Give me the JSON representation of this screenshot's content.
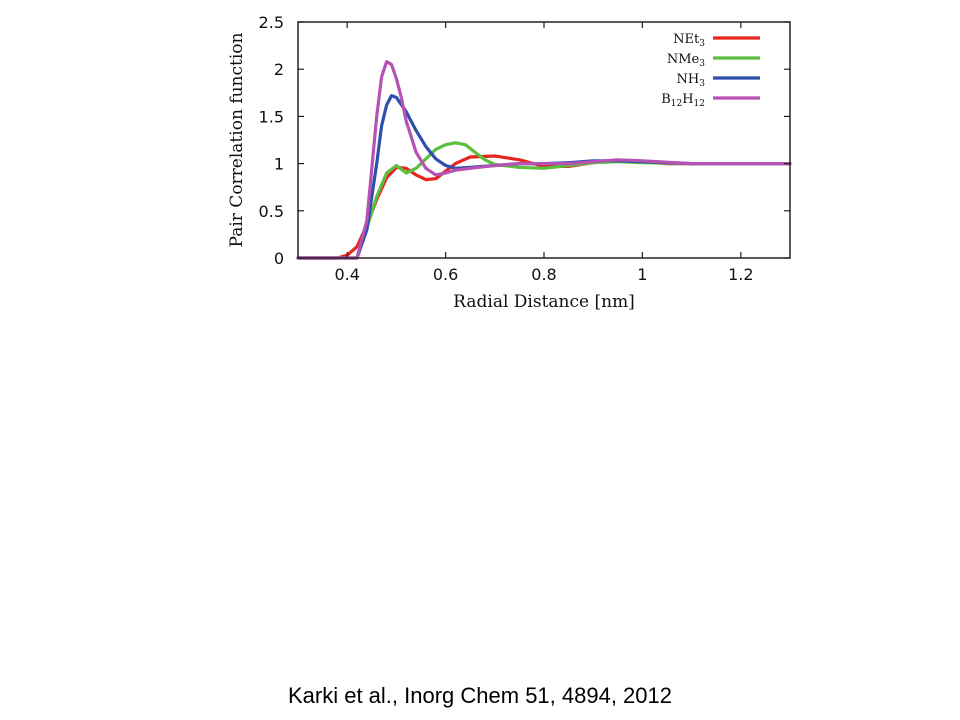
{
  "citation": "Karki et al., Inorg Chem 51, 4894, 2012",
  "chart_data": {
    "type": "line",
    "title": "",
    "xlabel": "Radial Distance [nm]",
    "ylabel": "Pair Correlation function",
    "xlim": [
      0.3,
      1.3
    ],
    "ylim": [
      0,
      2.5
    ],
    "xticks": [
      0.4,
      0.6,
      0.8,
      1,
      1.2
    ],
    "xtick_labels": [
      "0.4",
      "0.6",
      "0.8",
      "1",
      "1.2"
    ],
    "yticks": [
      0,
      0.5,
      1,
      1.5,
      2,
      2.5
    ],
    "ytick_labels": [
      "0",
      "0.5",
      "1",
      "1.5",
      "2",
      "2.5"
    ],
    "legend_position": "top-right",
    "grid": false,
    "series": [
      {
        "name": "NEt3",
        "legend": {
          "base": "NEt",
          "sub": "3"
        },
        "color": "#e8241f",
        "x": [
          0.3,
          0.38,
          0.4,
          0.42,
          0.44,
          0.46,
          0.48,
          0.5,
          0.52,
          0.54,
          0.56,
          0.58,
          0.6,
          0.62,
          0.65,
          0.7,
          0.75,
          0.8,
          0.85,
          0.9,
          0.95,
          1.0,
          1.05,
          1.1,
          1.2,
          1.3
        ],
        "y": [
          0,
          0,
          0.03,
          0.12,
          0.35,
          0.62,
          0.85,
          0.96,
          0.95,
          0.88,
          0.83,
          0.84,
          0.92,
          1.0,
          1.07,
          1.08,
          1.04,
          0.97,
          0.97,
          1.01,
          1.03,
          1.02,
          1.0,
          1.0,
          1.0,
          1.0
        ]
      },
      {
        "name": "NMe3",
        "legend": {
          "base": "NMe",
          "sub": "3"
        },
        "color": "#5cbf3f",
        "x": [
          0.3,
          0.42,
          0.44,
          0.46,
          0.48,
          0.5,
          0.52,
          0.54,
          0.56,
          0.58,
          0.6,
          0.62,
          0.64,
          0.66,
          0.68,
          0.7,
          0.75,
          0.8,
          0.85,
          0.9,
          0.95,
          1.0,
          1.1,
          1.2,
          1.3
        ],
        "y": [
          0,
          0,
          0.32,
          0.65,
          0.9,
          0.98,
          0.9,
          0.95,
          1.05,
          1.15,
          1.2,
          1.22,
          1.2,
          1.12,
          1.04,
          0.99,
          0.96,
          0.95,
          0.98,
          1.01,
          1.02,
          1.01,
          1.0,
          1.0,
          1.0
        ]
      },
      {
        "name": "NH3",
        "legend": {
          "base": "NH",
          "sub": "3"
        },
        "color": "#2f4fad",
        "x": [
          0.3,
          0.42,
          0.44,
          0.46,
          0.47,
          0.48,
          0.49,
          0.5,
          0.52,
          0.54,
          0.56,
          0.58,
          0.6,
          0.62,
          0.65,
          0.7,
          0.75,
          0.8,
          0.85,
          0.9,
          0.95,
          1.0,
          1.1,
          1.2,
          1.3
        ],
        "y": [
          0,
          0,
          0.3,
          1.0,
          1.4,
          1.62,
          1.72,
          1.7,
          1.55,
          1.35,
          1.18,
          1.05,
          0.98,
          0.95,
          0.96,
          0.98,
          1.0,
          1.0,
          1.01,
          1.03,
          1.03,
          1.02,
          1.0,
          1.0,
          1.0
        ]
      },
      {
        "name": "B12H12",
        "legend": {
          "base": "B",
          "sub": "12",
          "base2": "H",
          "sub2": "12"
        },
        "color": "#b652b3",
        "x": [
          0.3,
          0.42,
          0.44,
          0.45,
          0.46,
          0.47,
          0.48,
          0.49,
          0.5,
          0.51,
          0.52,
          0.54,
          0.56,
          0.58,
          0.6,
          0.62,
          0.65,
          0.7,
          0.75,
          0.8,
          0.85,
          0.9,
          0.95,
          1.0,
          1.1,
          1.2,
          1.3
        ],
        "y": [
          0,
          0,
          0.4,
          0.95,
          1.5,
          1.92,
          2.08,
          2.05,
          1.9,
          1.7,
          1.45,
          1.12,
          0.95,
          0.88,
          0.9,
          0.93,
          0.95,
          0.98,
          1.0,
          1.0,
          1.0,
          1.02,
          1.04,
          1.03,
          1.0,
          1.0,
          1.0
        ]
      }
    ]
  }
}
